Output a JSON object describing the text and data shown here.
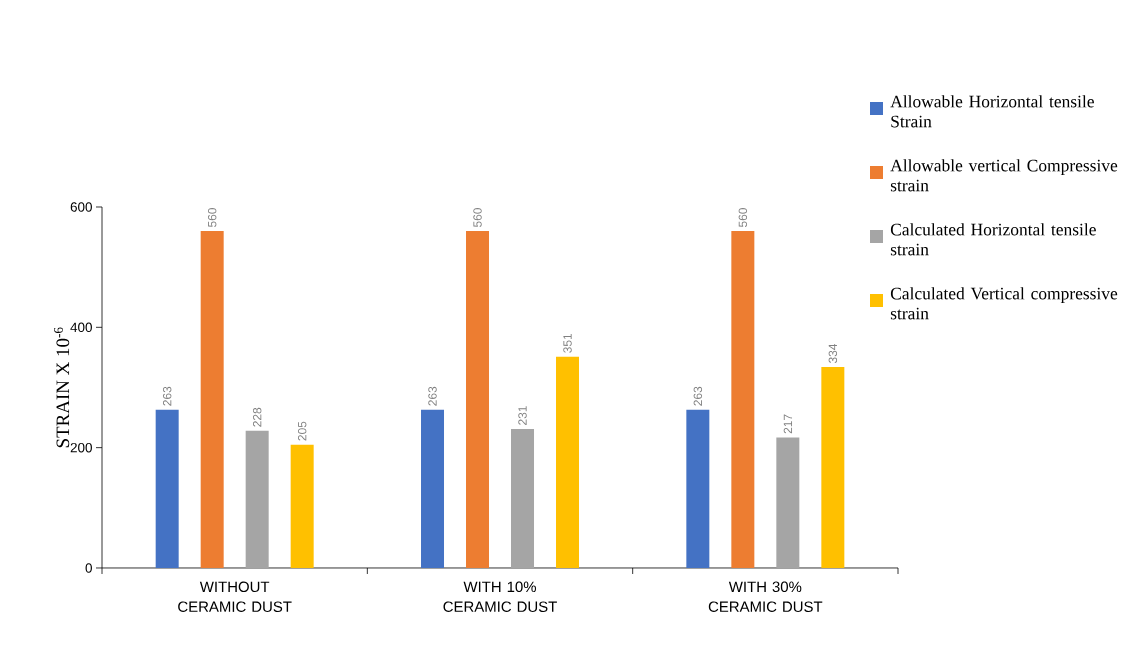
{
  "chart_data": {
    "type": "bar",
    "ylabel": "STRAIN X 10$^{-6}$",
    "categories": [
      "WITHOUT CERAMIC DUST",
      "WITH 10% CERAMIC DUST",
      "WITH 30% CERAMIC DUST"
    ],
    "series": [
      {
        "name": "Allowable Horizontal tensile Strain",
        "color": "#4472c4",
        "values": [
          263,
          263,
          263
        ]
      },
      {
        "name": "Allowable vertical Compressive strain",
        "color": "#ed7d31",
        "values": [
          560,
          560,
          560
        ]
      },
      {
        "name": "Calculated Horizontal tensile strain",
        "color": "#a5a5a5",
        "values": [
          228,
          231,
          217
        ]
      },
      {
        "name": "Calculated Vertical compressive strain",
        "color": "#ffc000",
        "values": [
          205,
          351,
          334
        ]
      }
    ],
    "ylim": [
      0,
      600
    ],
    "yticks": [
      0,
      200,
      400,
      600
    ],
    "data_labels": true,
    "legend": "right",
    "grid": false
  }
}
